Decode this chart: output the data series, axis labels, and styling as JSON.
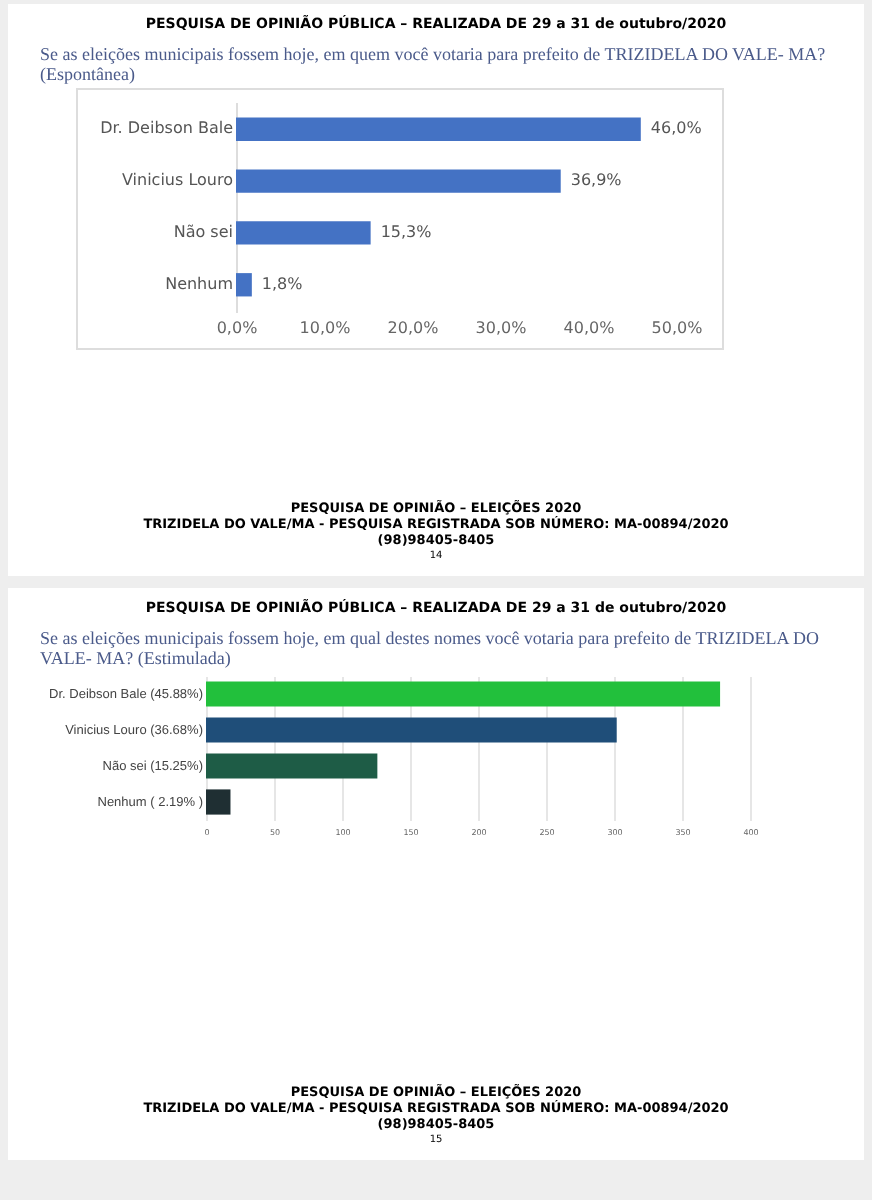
{
  "chart_data": [
    {
      "type": "bar",
      "orientation": "horizontal",
      "title": "PESQUISA DE OPINIÃO PÚBLICA – REALIZADA DE 29 a 31 de outubro/2020",
      "subtitle": "Se as eleições municipais fossem hoje, em quem você votaria para prefeito de TRIZIDELA DO VALE- MA? (Espontânea)",
      "categories": [
        "Dr. Deibson Bale",
        "Vinicius Louro",
        "Não sei",
        "Nenhum"
      ],
      "values": [
        46.0,
        36.9,
        15.3,
        1.8
      ],
      "value_labels": [
        "46,0%",
        "36,9%",
        "15,3%",
        "1,8%"
      ],
      "color": "#4472c4",
      "xlim": [
        0,
        50
      ],
      "xticks": [
        {
          "value": 0,
          "label": "0,0%"
        },
        {
          "value": 10,
          "label": "10,0%"
        },
        {
          "value": 20,
          "label": "20,0%"
        },
        {
          "value": 30,
          "label": "30,0%"
        },
        {
          "value": 40,
          "label": "40,0%"
        },
        {
          "value": 50,
          "label": "50,0%"
        }
      ],
      "annotations": [
        "PESQUISA DE OPINIÃO – ELEIÇÕES 2020",
        "TRIZIDELA DO VALE/MA - PESQUISA REGISTRADA SOB NÚMERO: MA-00894/2020",
        "(98)98405-8405",
        "14"
      ]
    },
    {
      "type": "bar",
      "orientation": "horizontal",
      "title": "PESQUISA DE OPINIÃO PÚBLICA – REALIZADA DE 29 a 31 de outubro/2020",
      "subtitle": "Se as eleições municipais fossem hoje, em qual destes nomes você votaria para prefeito de TRIZIDELA DO VALE- MA? (Estimulada)",
      "categories": [
        "Dr. Deibson Bale (45.88%)",
        "Vinicius Louro (36.68%)",
        "Não sei (15.25%)",
        "Nenhum ( 2.19% )"
      ],
      "values": [
        378,
        302,
        126,
        18
      ],
      "colors": [
        "#22c03c",
        "#1f4e79",
        "#1e5c46",
        "#1f2f33"
      ],
      "xlim": [
        0,
        400
      ],
      "xticks": [
        0,
        50,
        100,
        150,
        200,
        250,
        300,
        350,
        400
      ],
      "grid": "x",
      "annotations": [
        "PESQUISA DE OPINIÃO – ELEIÇÕES 2020",
        "TRIZIDELA DO VALE/MA - PESQUISA REGISTRADA SOB NÚMERO: MA-00894/2020",
        "(98)98405-8405",
        "15"
      ]
    }
  ]
}
